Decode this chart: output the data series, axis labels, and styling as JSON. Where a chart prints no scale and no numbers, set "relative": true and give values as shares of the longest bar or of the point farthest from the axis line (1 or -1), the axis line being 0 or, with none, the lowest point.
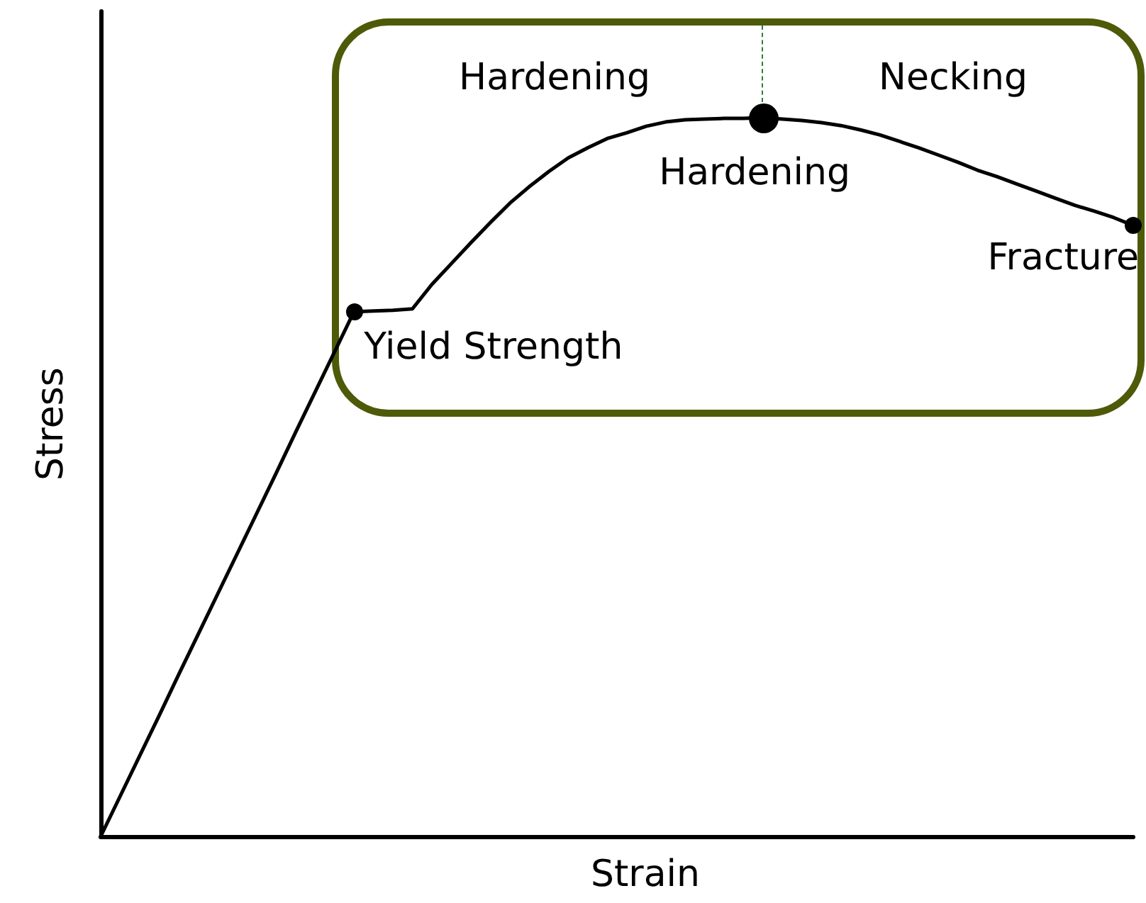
{
  "chart_data": {
    "type": "line",
    "relative": true,
    "xlabel": "Strain",
    "ylabel": "Stress",
    "categories": [
      null,
      null,
      null,
      null,
      null,
      null,
      null,
      null,
      null,
      null,
      null,
      null,
      null,
      null,
      null,
      null,
      null,
      null,
      null,
      null,
      null,
      null,
      null,
      null,
      null,
      null,
      null,
      null,
      null,
      null,
      null,
      null,
      null,
      null,
      null,
      null,
      null,
      null,
      null,
      null,
      null,
      null,
      null,
      null,
      null,
      null,
      null,
      null,
      null,
      null,
      null,
      null,
      null,
      null
    ],
    "series": [
      {
        "color": "#000000",
        "marker": "none",
        "values": [
          0,
          0.056,
          0.112,
          0.168,
          0.225,
          0.281,
          0.337,
          0.393,
          0.449,
          0.505,
          0.562,
          0.618,
          0.674,
          0.73,
          0.731,
          0.732,
          0.734,
          0.768,
          0.797,
          0.826,
          0.854,
          0.881,
          0.904,
          0.925,
          0.944,
          0.958,
          0.971,
          0.979,
          0.988,
          0.994,
          0.997,
          0.998,
          0.999,
          0.999,
          1,
          0.998,
          0.996,
          0.993,
          0.989,
          0.983,
          0.976,
          0.967,
          0.958,
          0.948,
          0.938,
          0.927,
          0.918,
          0.908,
          0.898,
          0.888,
          0.878,
          0.87,
          0.861,
          0.85
        ]
      }
    ],
    "annotations": [
      "Hardening",
      "Necking",
      {
        "text": "Hardening",
        "y": 1
      },
      "Yield Strength",
      "Fracture"
    ],
    "grid": false
  }
}
